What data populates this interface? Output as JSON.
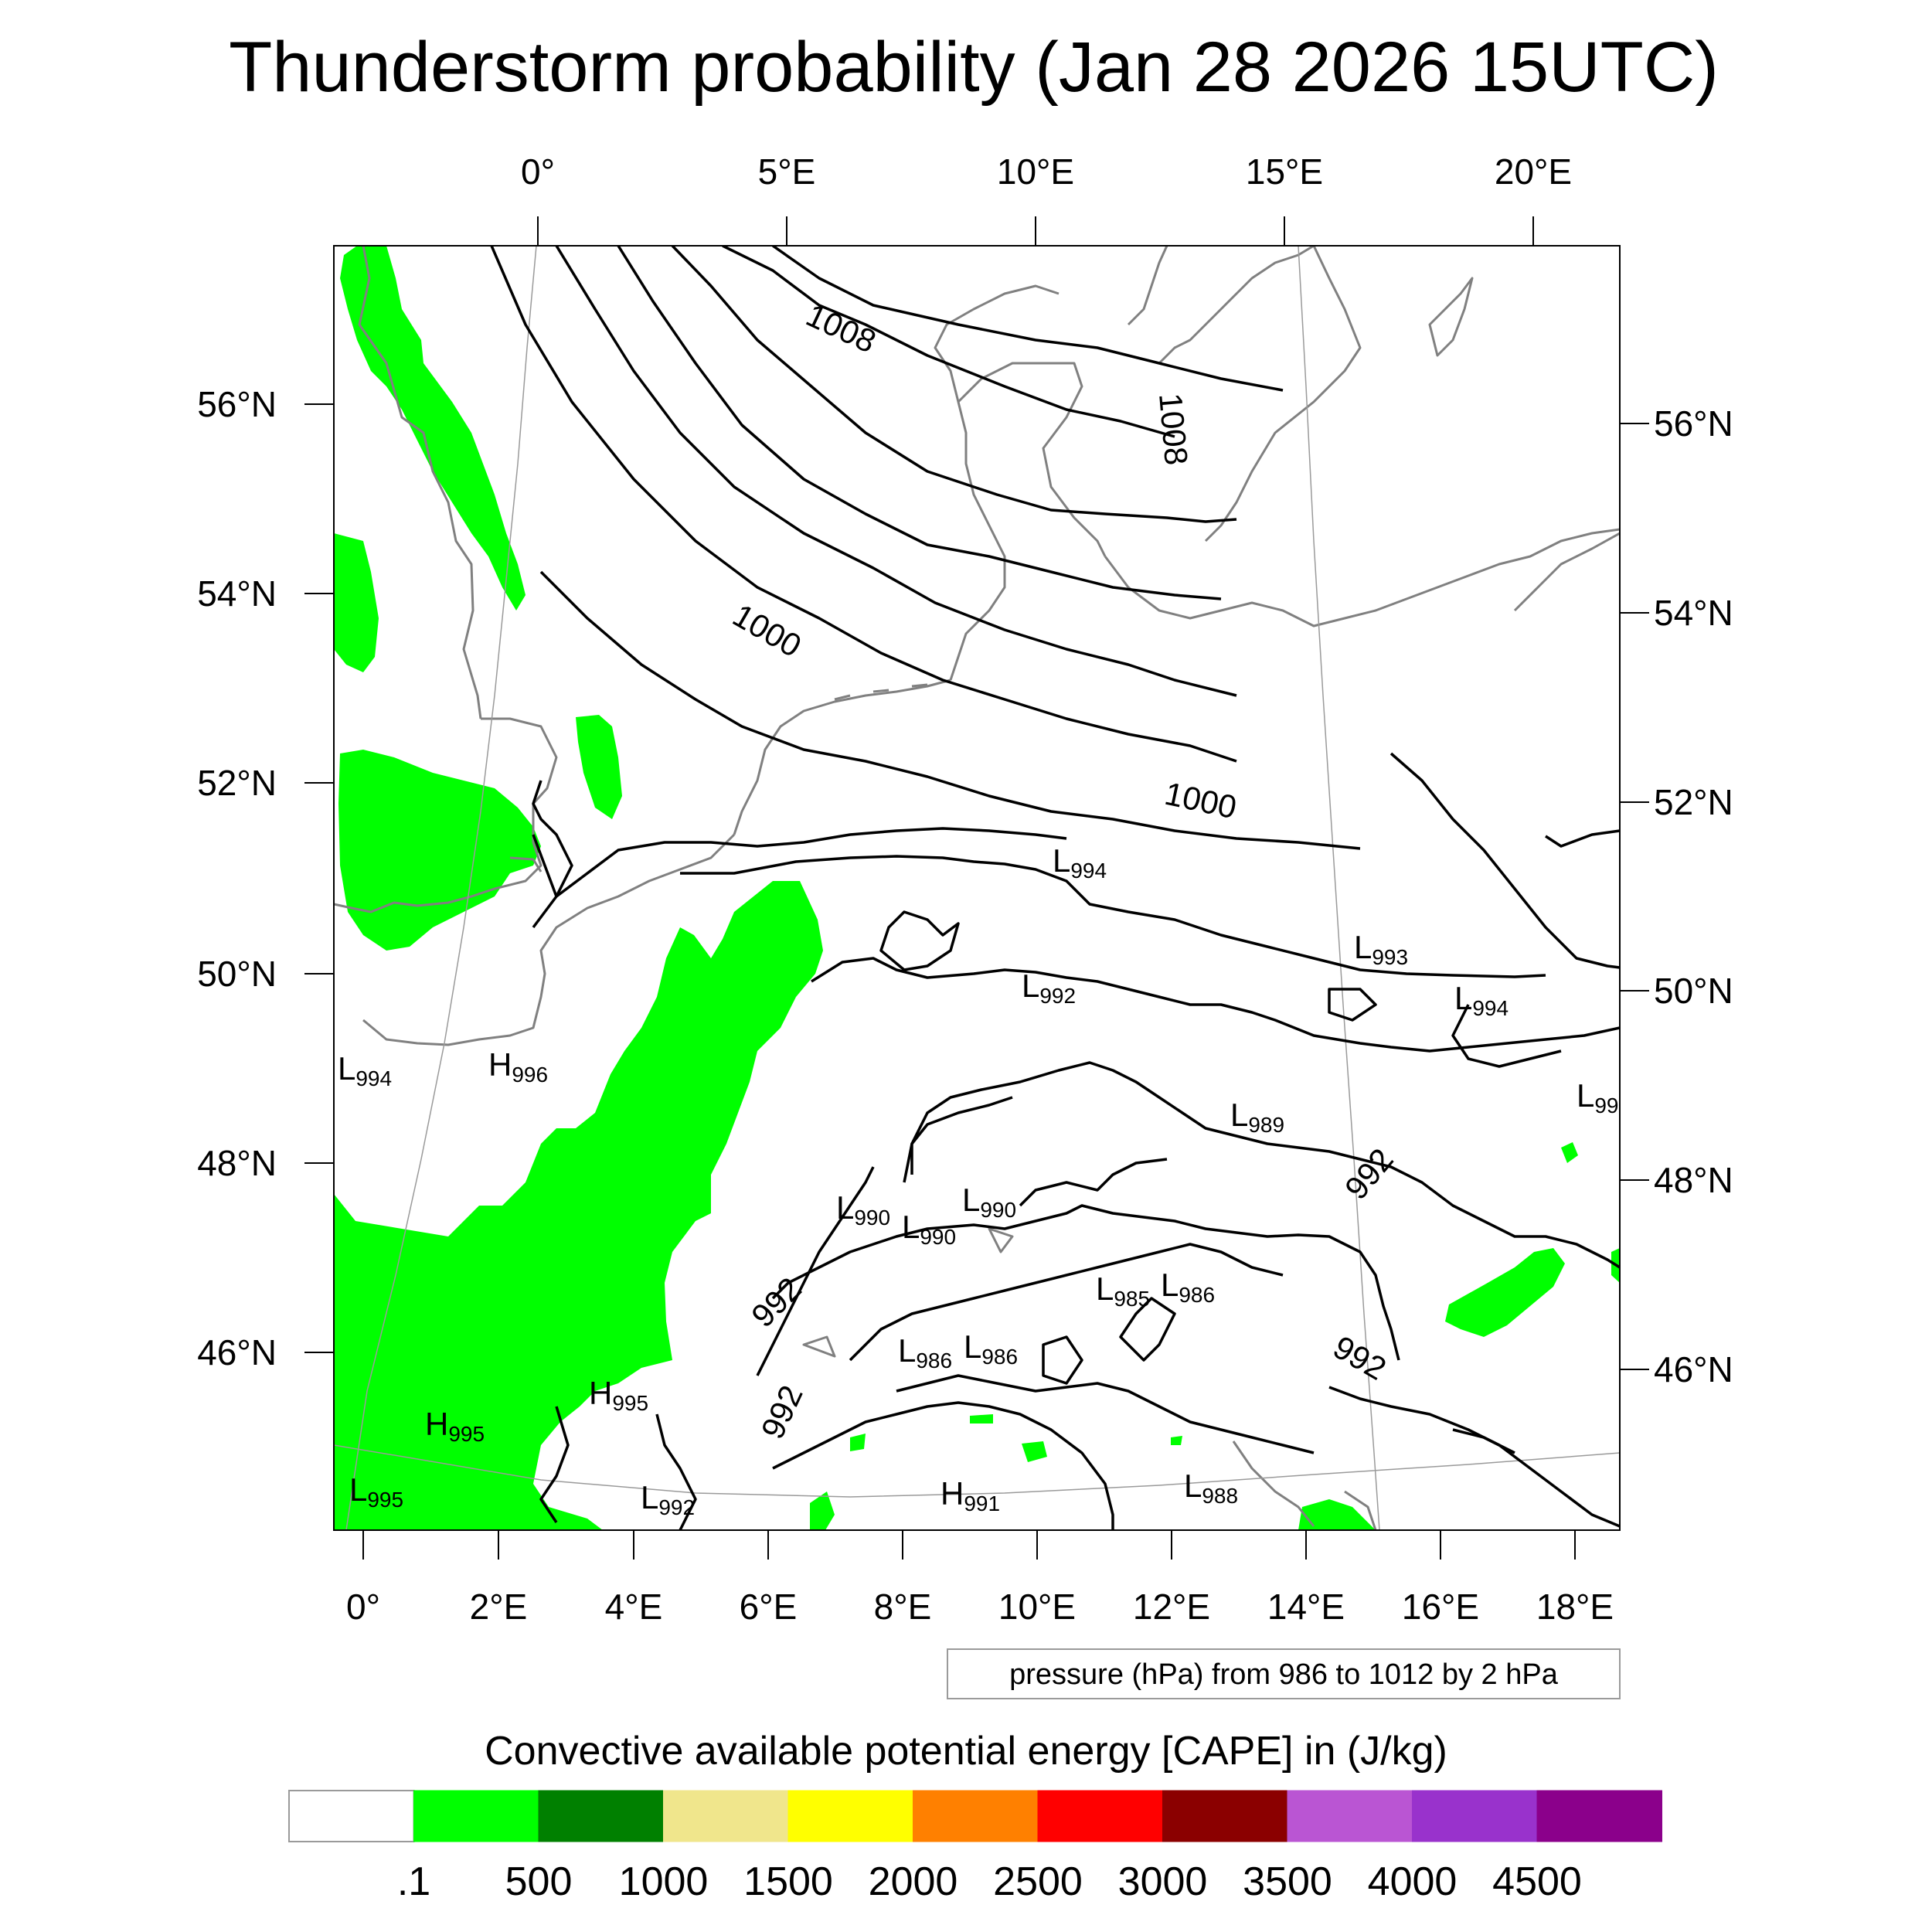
{
  "title": "Thunderstorm probability (Jan 28 2026 15UTC)",
  "top_lon_labels": [
    "0°",
    "5°E",
    "10°E",
    "15°E",
    "20°E"
  ],
  "left_lat_labels": [
    "56°N",
    "54°N",
    "52°N",
    "50°N",
    "48°N",
    "46°N"
  ],
  "right_lat_labels": [
    "56°N",
    "54°N",
    "52°N",
    "50°N",
    "48°N",
    "46°N"
  ],
  "bottom_lon_labels": [
    "0°",
    "2°E",
    "4°E",
    "6°E",
    "8°E",
    "10°E",
    "12°E",
    "14°E",
    "16°E",
    "18°E"
  ],
  "isobar_labels": [
    "1008",
    "1008",
    "1000",
    "1000",
    "992",
    "992",
    "992",
    "992"
  ],
  "pressure_centers": [
    {
      "type": "L",
      "value": "994"
    },
    {
      "type": "L",
      "value": "993"
    },
    {
      "type": "L",
      "value": "992"
    },
    {
      "type": "L",
      "value": "994"
    },
    {
      "type": "L",
      "value": "994"
    },
    {
      "type": "H",
      "value": "996"
    },
    {
      "type": "L",
      "value": "99"
    },
    {
      "type": "L",
      "value": "989"
    },
    {
      "type": "L",
      "value": "990"
    },
    {
      "type": "L",
      "value": "990"
    },
    {
      "type": "L",
      "value": "990"
    },
    {
      "type": "L",
      "value": "985"
    },
    {
      "type": "L",
      "value": "986"
    },
    {
      "type": "L",
      "value": "986"
    },
    {
      "type": "L",
      "value": "986"
    },
    {
      "type": "H",
      "value": "995"
    },
    {
      "type": "H",
      "value": "995"
    },
    {
      "type": "L",
      "value": "995"
    },
    {
      "type": "L",
      "value": "992"
    },
    {
      "type": "H",
      "value": "991"
    },
    {
      "type": "L",
      "value": "988"
    }
  ],
  "contour_info": "pressure (hPa) from 986 to 1012 by 2 hPa",
  "colorbar": {
    "title": "Convective available potential energy [CAPE] in (J/kg)",
    "labels": [
      ".1",
      "500",
      "1000",
      "1500",
      "2000",
      "2500",
      "3000",
      "3500",
      "4000",
      "4500"
    ],
    "colors": [
      "#ffffff",
      "#00ff00",
      "#008000",
      "#f0e68c",
      "#ffff00",
      "#ff8000",
      "#ff0000",
      "#8b0000",
      "#ba55d3",
      "#9932cc",
      "#8b008b"
    ]
  },
  "colors": {
    "cape_low": "#00ff00",
    "coast": "#808080",
    "isobar": "#000000",
    "grid": "#9a9a9a"
  }
}
